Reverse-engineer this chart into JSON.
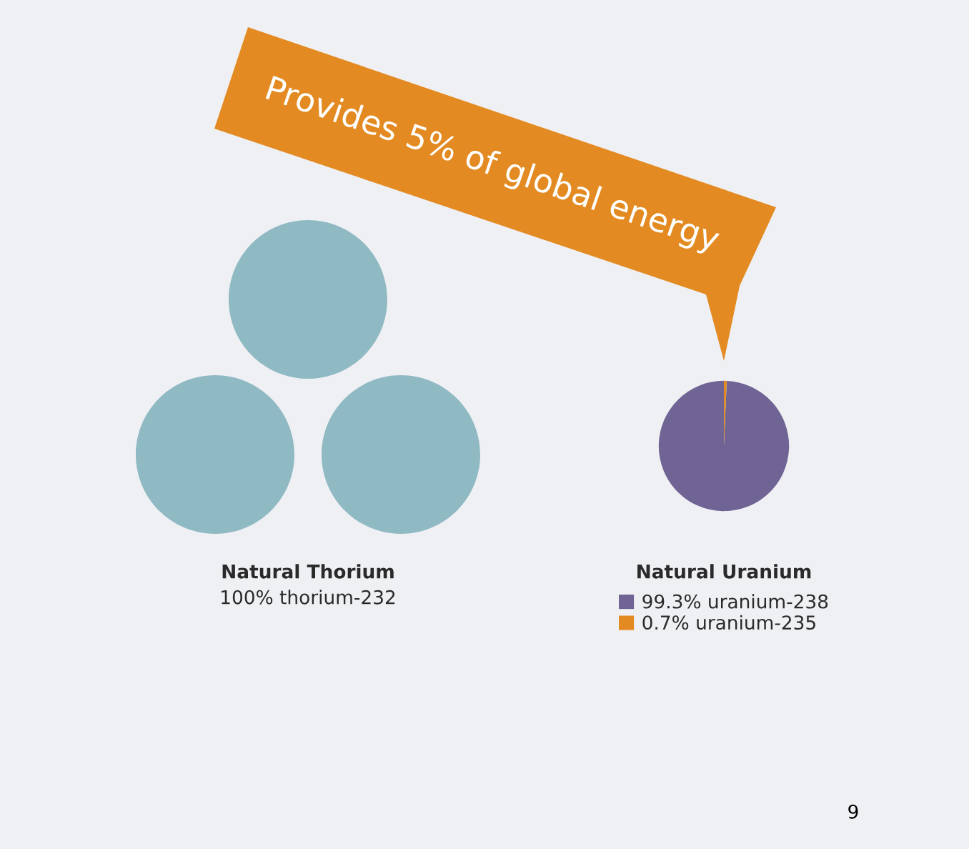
{
  "chart_data": [
    {
      "type": "other",
      "title": "Natural Thorium",
      "annotations": [
        "100% thorium-232"
      ]
    },
    {
      "type": "pie",
      "title": "Natural Uranium",
      "categories": [
        "99.3% uranium-238",
        "0.7% uranium-235"
      ],
      "values": [
        99.3,
        0.7
      ],
      "colors": [
        "#706494",
        "#e38b22"
      ],
      "legend": "bottom",
      "annotations": [
        "Provides 5% of global energy",
        "9"
      ]
    }
  ]
}
